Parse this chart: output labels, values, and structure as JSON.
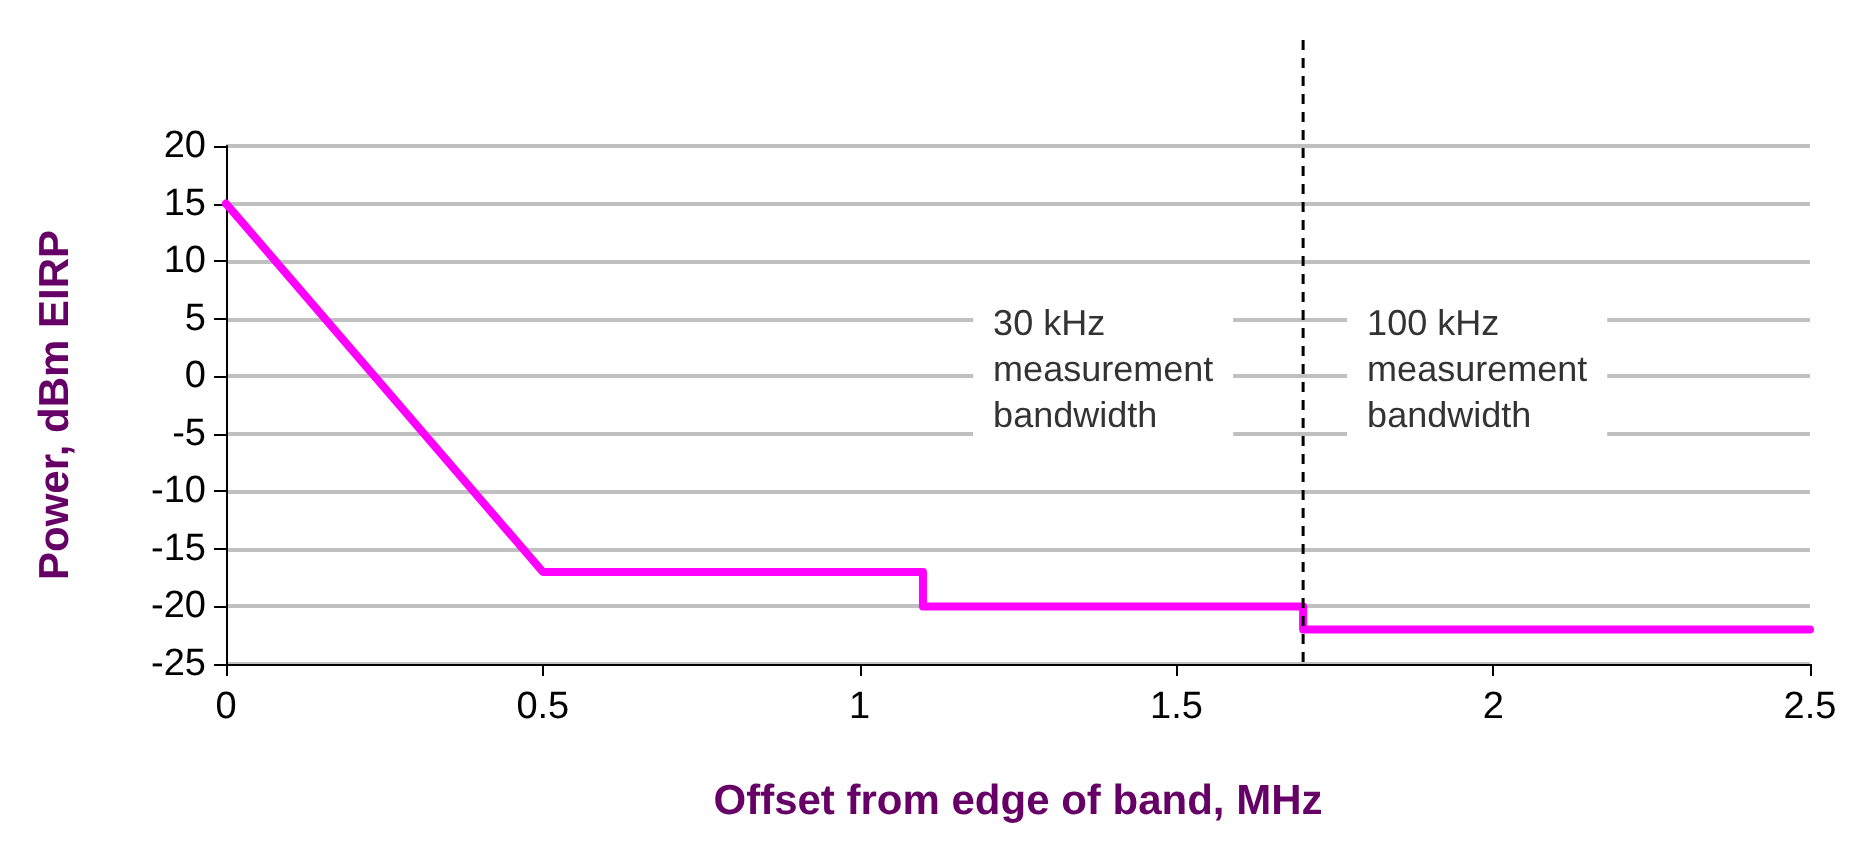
{
  "chart_data": {
    "type": "line",
    "xlabel": "Offset from edge of band, MHz",
    "ylabel": "Power, dBm EIRP",
    "x": [
      0,
      0.5,
      1.1,
      1.1,
      1.7,
      1.7,
      2.5
    ],
    "series": [
      {
        "color": "#ff00ff",
        "values": [
          15,
          -17,
          -17,
          -20,
          -20,
          -22,
          -22
        ]
      }
    ],
    "xlim": [
      0,
      2.5
    ],
    "xticks": [
      0,
      0.5,
      1,
      1.5,
      2,
      2.5
    ],
    "ylim": [
      -25,
      20
    ],
    "yticks": [
      -25,
      -20,
      -15,
      -10,
      -5,
      0,
      5,
      10,
      15,
      20
    ],
    "grid": "y",
    "marker": "none",
    "line_style": "solid",
    "ref_lines": [
      {
        "axis": "x",
        "value": 1.7,
        "color": "#000000",
        "line_style": "dashed"
      }
    ],
    "annotations": [
      "30 kHz\nmeasurement\nbandwidth",
      "100 kHz\nmeasurement\nbandwidth"
    ]
  }
}
